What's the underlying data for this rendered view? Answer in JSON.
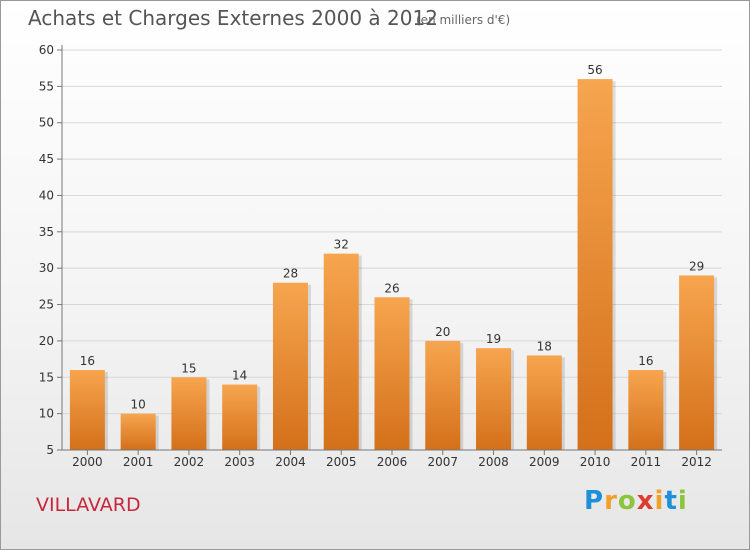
{
  "title": "Achats et Charges Externes 2000 à 2012",
  "subtitle": "(en milliers d'€)",
  "commune": "VILLAVARD",
  "logo": {
    "text": "Proxiti",
    "letter_colors": [
      "#1f8fd8",
      "#f3a02a",
      "#8cc43c",
      "#e03a2f",
      "#f3a02a",
      "#1f8fd8",
      "#8cc43c"
    ]
  },
  "colors": {
    "bar_light": "#f7a54f",
    "bar_dark": "#d4701a",
    "grid": "#d8d8d8",
    "axis": "#777777",
    "text": "#333333"
  },
  "chart_data": {
    "type": "bar",
    "categories": [
      "2000",
      "2001",
      "2002",
      "2003",
      "2004",
      "2005",
      "2006",
      "2007",
      "2008",
      "2009",
      "2010",
      "2011",
      "2012"
    ],
    "values": [
      16,
      10,
      15,
      14,
      28,
      32,
      26,
      20,
      19,
      18,
      56,
      16,
      29
    ],
    "title": "Achats et Charges Externes 2000 à 2012",
    "ylim": [
      5,
      60
    ],
    "yticks": [
      5,
      10,
      15,
      20,
      25,
      30,
      35,
      40,
      45,
      50,
      55,
      60
    ],
    "grid": true,
    "legend": "none"
  }
}
